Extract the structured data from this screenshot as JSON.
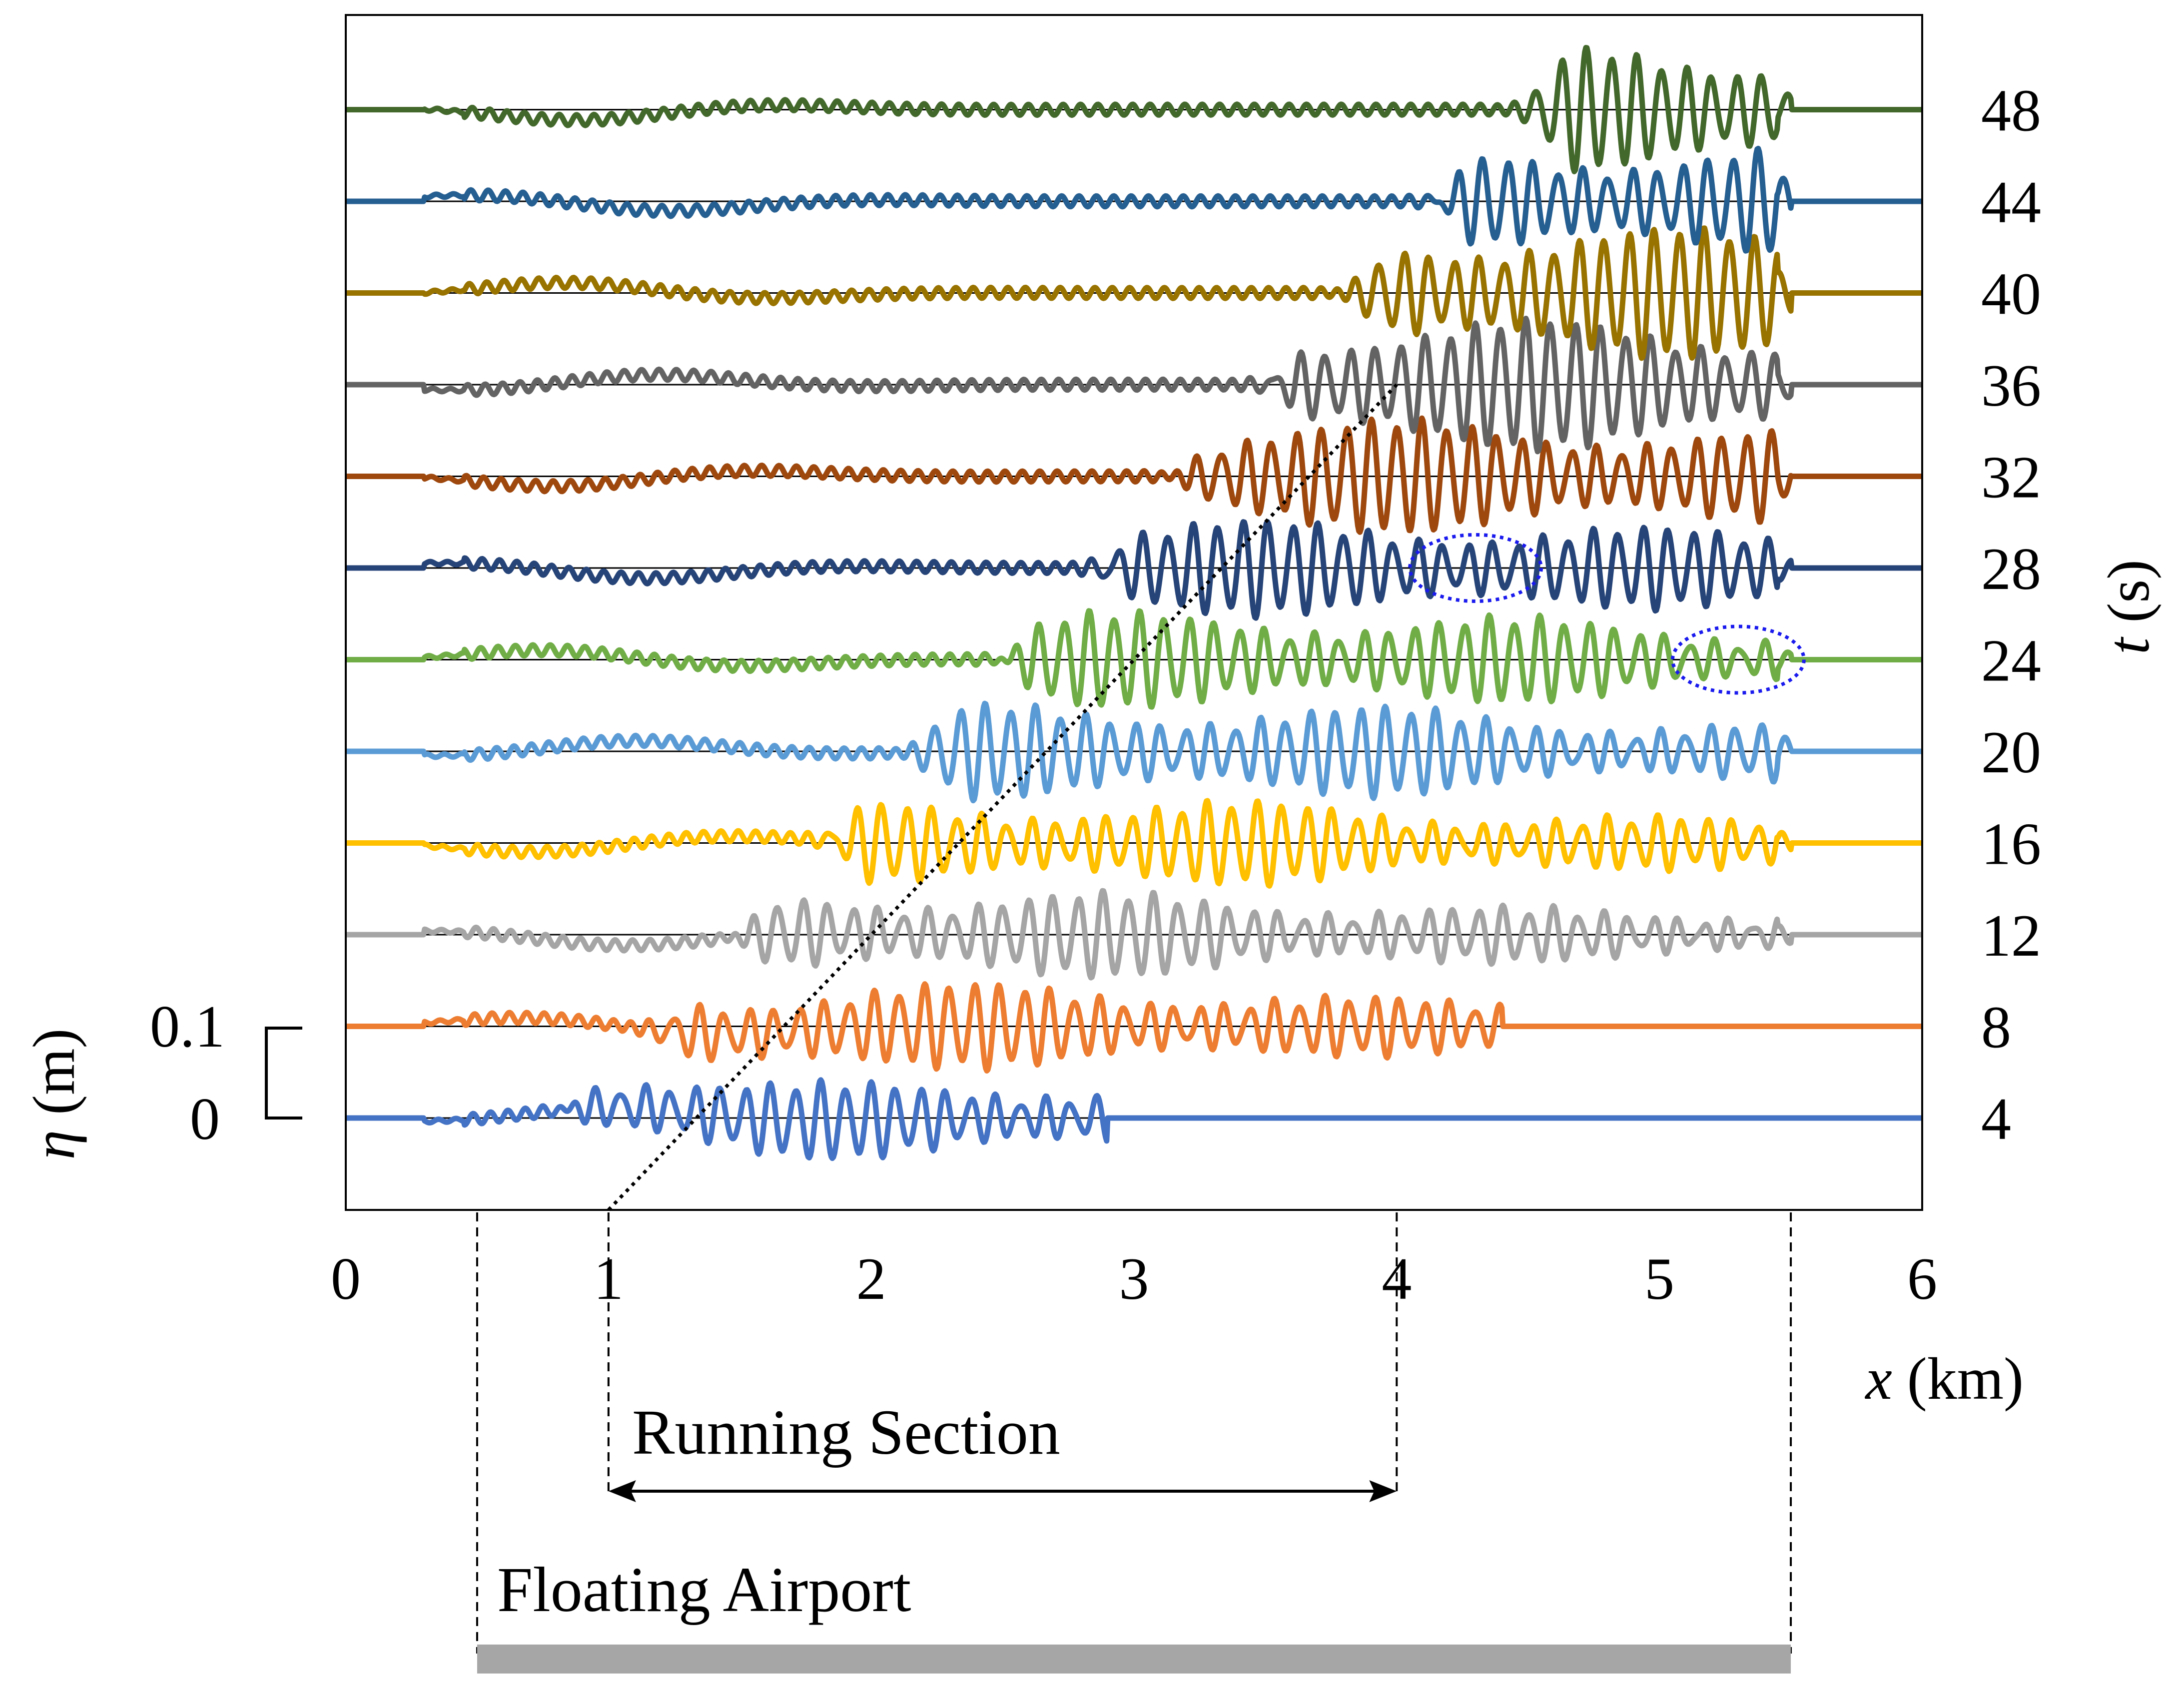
{
  "chart_data": {
    "type": "line",
    "xlabel": {
      "var": "x",
      "unit": " (km)"
    },
    "ylabel_left": {
      "var": "η",
      "unit": " (m)"
    },
    "ylabel_right": {
      "var": "t",
      "unit": " (s)"
    },
    "xlim": [
      0,
      6
    ],
    "x_ticks": [
      "0",
      "1",
      "2",
      "3",
      "4",
      "5",
      "6"
    ],
    "scale_bar": {
      "top_label": "0.1",
      "bottom_label": "0",
      "value_m": 0.1
    },
    "running_section": {
      "label": "Running Section",
      "x_start": 1,
      "x_end": 4
    },
    "floating_airport": {
      "label": "Floating Airport",
      "x_start": 0.5,
      "x_end": 5.5,
      "color": "#a6a6a6"
    },
    "front_line": {
      "x0": 1.0,
      "t0": 0,
      "x1": 4.0,
      "t1": 36
    },
    "ellipses": [
      {
        "x": 4.3,
        "t": 28,
        "rx_km": 0.25,
        "ry_s": 1.45,
        "color": "#1a1aee"
      },
      {
        "x": 5.3,
        "t": 24,
        "rx_km": 0.25,
        "ry_s": 1.45,
        "color": "#1a1aee"
      }
    ],
    "series": [
      {
        "t": "4",
        "color": "#4472c4",
        "front_x": 1.0,
        "max_amp_m": 0.04,
        "quiet_after_x": 2.9
      },
      {
        "t": "8",
        "color": "#ed7d31",
        "front_x": 1.33,
        "max_amp_m": 0.045,
        "quiet_after_x": 4.4
      },
      {
        "t": "12",
        "color": "#a5a5a5",
        "front_x": 1.67,
        "max_amp_m": 0.045,
        "quiet_after_x": 5.5
      },
      {
        "t": "16",
        "color": "#ffc000",
        "front_x": 2.0,
        "max_amp_m": 0.045,
        "quiet_after_x": 5.5
      },
      {
        "t": "20",
        "color": "#5b9bd5",
        "front_x": 2.33,
        "max_amp_m": 0.05,
        "quiet_after_x": 5.5
      },
      {
        "t": "24",
        "color": "#70ad47",
        "front_x": 2.67,
        "max_amp_m": 0.05,
        "quiet_after_x": 5.5
      },
      {
        "t": "28",
        "color": "#264478",
        "front_x": 3.0,
        "max_amp_m": 0.05,
        "quiet_after_x": 5.5
      },
      {
        "t": "32",
        "color": "#9e480e",
        "front_x": 3.33,
        "max_amp_m": 0.06,
        "quiet_after_x": 5.5
      },
      {
        "t": "36",
        "color": "#636363",
        "front_x": 3.67,
        "max_amp_m": 0.07,
        "quiet_after_x": 5.5
      },
      {
        "t": "40",
        "color": "#997300",
        "front_x": 4.0,
        "max_amp_m": 0.07,
        "quiet_after_x": 5.5
      },
      {
        "t": "44",
        "color": "#255e91",
        "front_x": 4.33,
        "max_amp_m": 0.06,
        "quiet_after_x": 5.5
      },
      {
        "t": "48",
        "color": "#43682b",
        "front_x": 4.67,
        "max_amp_m": 0.07,
        "quiet_after_x": 5.5
      }
    ]
  }
}
